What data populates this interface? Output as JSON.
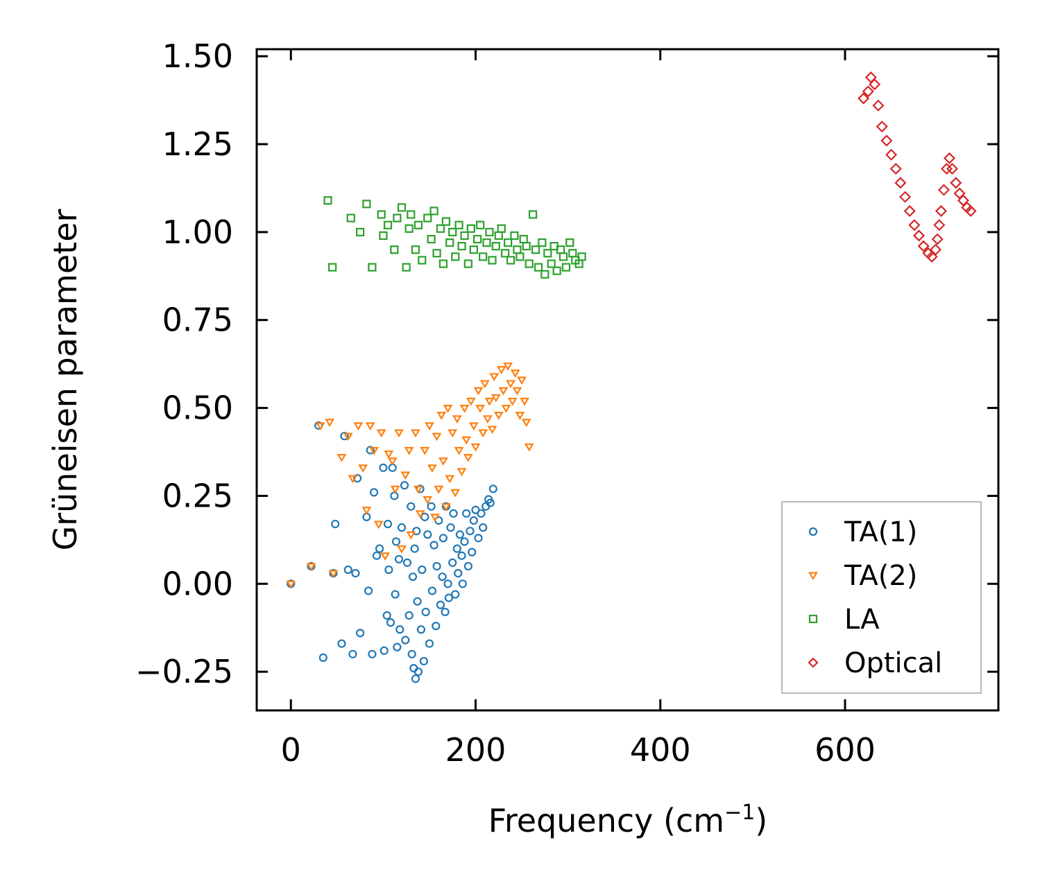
{
  "chart_data": {
    "type": "scatter",
    "title": "",
    "xlabel": "Frequency (cm",
    "xlabel_exponent": "−1",
    "xlabel_suffix": ")",
    "ylabel": "Grüneisen parameter",
    "xlim": [
      -37,
      766
    ],
    "ylim": [
      -0.36,
      1.52
    ],
    "xticks": [
      0,
      200,
      400,
      600
    ],
    "xtick_labels": [
      "0",
      "200",
      "400",
      "600"
    ],
    "yticks": [
      -0.25,
      0.0,
      0.25,
      0.5,
      0.75,
      1.0,
      1.25,
      1.5
    ],
    "ytick_labels": [
      "−0.25",
      "0.00",
      "0.25",
      "0.50",
      "0.75",
      "1.00",
      "1.25",
      "1.50"
    ],
    "legend_position": "bottom-right",
    "grid": false,
    "series": [
      {
        "name": "TA(1)",
        "marker": "circle",
        "color": "#1f77b4",
        "x": [
          0,
          22,
          30,
          35,
          46,
          48,
          55,
          58,
          62,
          67,
          70,
          72,
          75,
          82,
          84,
          86,
          88,
          90,
          93,
          96,
          100,
          101,
          104,
          105,
          106,
          108,
          110,
          112,
          113,
          114,
          115,
          117,
          118,
          120,
          123,
          124,
          126,
          128,
          130,
          131,
          132,
          133,
          134,
          135,
          136,
          137,
          138,
          140,
          141,
          142,
          144,
          145,
          146,
          148,
          150,
          152,
          153,
          155,
          157,
          158,
          160,
          162,
          164,
          165,
          167,
          168,
          170,
          171,
          173,
          175,
          176,
          178,
          180,
          181,
          183,
          185,
          186,
          188,
          190,
          192,
          194,
          196,
          198,
          200,
          203,
          206,
          208,
          211,
          214,
          216,
          219
        ],
        "y": [
          0.0,
          0.05,
          0.45,
          -0.21,
          0.03,
          0.17,
          -0.17,
          0.42,
          0.04,
          -0.2,
          0.03,
          0.3,
          -0.14,
          0.19,
          -0.02,
          0.38,
          -0.2,
          0.26,
          0.08,
          0.1,
          0.33,
          -0.19,
          -0.09,
          0.17,
          0.04,
          -0.11,
          0.33,
          0.25,
          -0.03,
          0.12,
          -0.18,
          0.07,
          -0.13,
          0.16,
          0.28,
          -0.16,
          0.06,
          -0.09,
          0.22,
          -0.2,
          0.02,
          -0.24,
          0.1,
          -0.27,
          0.15,
          -0.05,
          -0.25,
          0.27,
          -0.13,
          0.04,
          -0.22,
          0.19,
          -0.08,
          0.14,
          -0.17,
          0.22,
          -0.02,
          0.11,
          -0.12,
          0.05,
          0.18,
          -0.06,
          0.02,
          0.13,
          -0.08,
          0.22,
          0.0,
          -0.04,
          0.16,
          0.06,
          0.2,
          -0.03,
          0.1,
          0.03,
          0.14,
          0.08,
          0.0,
          0.12,
          0.2,
          0.05,
          0.15,
          0.09,
          0.18,
          0.21,
          0.13,
          0.2,
          0.16,
          0.22,
          0.24,
          0.23,
          0.27
        ]
      },
      {
        "name": "TA(2)",
        "marker": "triangle-down",
        "color": "#ff7f0e",
        "x": [
          0,
          22,
          32,
          42,
          46,
          55,
          62,
          67,
          73,
          78,
          82,
          86,
          90,
          95,
          98,
          102,
          106,
          110,
          113,
          117,
          120,
          124,
          128,
          130,
          135,
          138,
          140,
          145,
          148,
          150,
          153,
          156,
          158,
          160,
          163,
          165,
          168,
          170,
          172,
          175,
          178,
          180,
          182,
          185,
          188,
          190,
          192,
          195,
          198,
          200,
          203,
          205,
          208,
          210,
          213,
          215,
          218,
          220,
          222,
          225,
          228,
          230,
          233,
          235,
          238,
          240,
          243,
          245,
          248,
          250,
          253,
          255,
          258
        ],
        "y": [
          0.0,
          0.05,
          0.45,
          0.46,
          0.03,
          0.36,
          0.42,
          0.3,
          0.45,
          0.33,
          0.21,
          0.45,
          0.38,
          0.17,
          0.43,
          0.08,
          0.37,
          0.35,
          0.27,
          0.43,
          0.1,
          0.31,
          0.38,
          0.14,
          0.43,
          0.27,
          0.2,
          0.38,
          0.24,
          0.45,
          0.33,
          0.19,
          0.42,
          0.27,
          0.48,
          0.35,
          0.22,
          0.5,
          0.3,
          0.43,
          0.26,
          0.47,
          0.38,
          0.32,
          0.5,
          0.41,
          0.36,
          0.52,
          0.45,
          0.39,
          0.55,
          0.5,
          0.43,
          0.57,
          0.47,
          0.52,
          0.44,
          0.59,
          0.53,
          0.48,
          0.61,
          0.55,
          0.5,
          0.62,
          0.57,
          0.52,
          0.6,
          0.55,
          0.48,
          0.58,
          0.52,
          0.46,
          0.39
        ]
      },
      {
        "name": "LA",
        "marker": "square",
        "color": "#2ca02c",
        "x": [
          40,
          45,
          65,
          75,
          82,
          88,
          98,
          100,
          105,
          112,
          115,
          120,
          125,
          128,
          130,
          135,
          138,
          142,
          148,
          152,
          155,
          158,
          162,
          165,
          168,
          172,
          175,
          178,
          182,
          185,
          188,
          192,
          195,
          198,
          202,
          205,
          208,
          212,
          215,
          218,
          222,
          225,
          228,
          232,
          235,
          238,
          242,
          245,
          248,
          252,
          255,
          258,
          262,
          265,
          268,
          272,
          275,
          278,
          282,
          285,
          288,
          292,
          295,
          298,
          302,
          305,
          308,
          312,
          315
        ],
        "y": [
          1.09,
          0.9,
          1.04,
          1.0,
          1.08,
          0.9,
          1.05,
          0.99,
          1.02,
          0.95,
          1.04,
          1.07,
          0.9,
          1.01,
          1.05,
          0.95,
          1.02,
          0.92,
          1.04,
          0.98,
          1.06,
          0.94,
          1.01,
          0.91,
          1.03,
          0.97,
          1.0,
          0.93,
          1.02,
          0.96,
          0.99,
          0.91,
          1.01,
          0.95,
          0.98,
          1.02,
          0.93,
          0.97,
          1.0,
          0.92,
          0.96,
          0.99,
          1.01,
          0.94,
          0.97,
          0.92,
          0.99,
          0.95,
          0.93,
          0.98,
          0.96,
          0.91,
          1.05,
          0.95,
          0.9,
          0.97,
          0.88,
          0.94,
          0.91,
          0.96,
          0.89,
          0.95,
          0.93,
          0.9,
          0.97,
          0.94,
          0.92,
          0.91,
          0.93
        ]
      },
      {
        "name": "Optical",
        "marker": "diamond",
        "color": "#d62728",
        "x": [
          620,
          625,
          628,
          632,
          636,
          640,
          645,
          650,
          655,
          660,
          665,
          670,
          675,
          680,
          685,
          690,
          694,
          698,
          700,
          702,
          704,
          707,
          710,
          713,
          716,
          720,
          724,
          728,
          732,
          736
        ],
        "y": [
          1.38,
          1.4,
          1.44,
          1.42,
          1.36,
          1.3,
          1.26,
          1.22,
          1.18,
          1.14,
          1.1,
          1.06,
          1.02,
          0.99,
          0.96,
          0.94,
          0.93,
          0.95,
          0.98,
          1.02,
          1.06,
          1.12,
          1.18,
          1.21,
          1.18,
          1.14,
          1.11,
          1.09,
          1.07,
          1.06
        ]
      }
    ]
  }
}
